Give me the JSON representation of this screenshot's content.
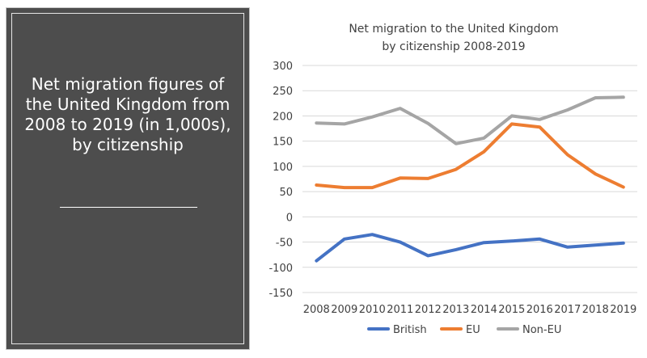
{
  "panel": {
    "heading": "Net migration figures of the United Kingdom from 2008 to 2019 (in 1,000s), by citizenship"
  },
  "colors": {
    "panel_bg": "#4d4d4d",
    "british": "#4472c4",
    "eu": "#ed7d31",
    "non_eu": "#a5a5a5",
    "gridline": "#d9d9d9"
  },
  "chart_data": {
    "type": "line",
    "title": "Net migration to the United Kingdom by citizenship 2008-2019",
    "xlabel": "",
    "ylabel": "",
    "x": [
      2008,
      2009,
      2010,
      2011,
      2012,
      2013,
      2014,
      2015,
      2016,
      2017,
      2018,
      2019
    ],
    "ylim": [
      -150,
      300
    ],
    "yticks": [
      -150,
      -100,
      -50,
      0,
      50,
      100,
      150,
      200,
      250,
      300
    ],
    "grid": true,
    "legend_position": "bottom",
    "series": [
      {
        "name": "British",
        "color": "#4472c4",
        "values": [
          -87,
          -44,
          -35,
          -50,
          -77,
          -65,
          -51,
          -48,
          -44,
          -60,
          -56,
          -52
        ]
      },
      {
        "name": "EU",
        "color": "#ed7d31",
        "values": [
          63,
          58,
          58,
          77,
          76,
          94,
          129,
          184,
          178,
          123,
          85,
          59
        ]
      },
      {
        "name": "Non-EU",
        "color": "#a5a5a5",
        "values": [
          186,
          184,
          198,
          215,
          185,
          145,
          156,
          200,
          193,
          212,
          236,
          237
        ]
      }
    ]
  }
}
